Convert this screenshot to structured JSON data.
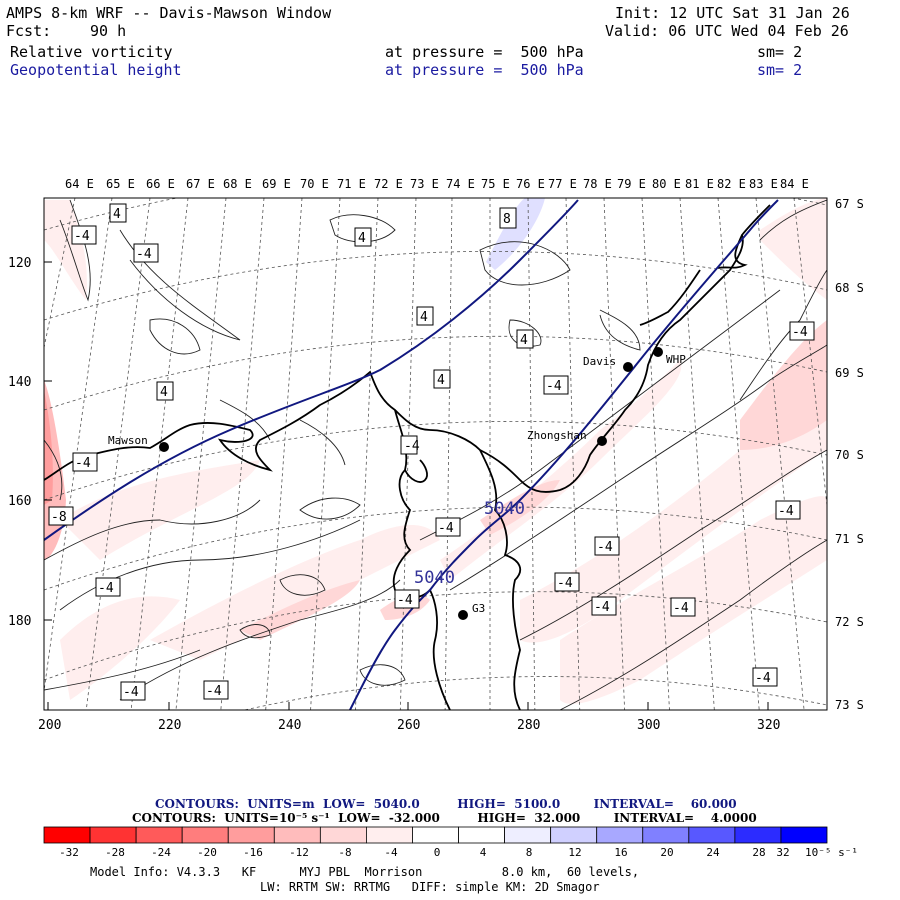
{
  "header": {
    "title": "AMPS 8-km WRF -- Davis-Mawson Window",
    "init": "Init: 12 UTC Sat 31 Jan 26",
    "fcst_label": "Fcst:",
    "fcst_value": "90 h",
    "valid": "Valid: 06 UTC Wed 04 Feb 26",
    "field1_name": "Relative vorticity",
    "field1_level": "at pressure =  500 hPa",
    "field1_sm": "sm= 2",
    "field2_name": "Geopotential height",
    "field2_level": "at pressure =  500 hPa",
    "field2_sm": "sm= 2"
  },
  "map": {
    "top_labels": [
      "64 E",
      "65 E",
      "66 E",
      "67 E",
      "68 E",
      "69 E",
      "70 E",
      "71 E",
      "72 E",
      "73 E",
      "74 E",
      "75 E",
      "76 E",
      "77 E",
      "78 E",
      "79 E",
      "80 E",
      "81 E",
      "82 E",
      "83 E",
      "84 E"
    ],
    "right_labels": [
      "67 S",
      "68 S",
      "69 S",
      "70 S",
      "71 S",
      "72 S",
      "73 S"
    ],
    "left_ticks": [
      "120",
      "140",
      "160",
      "180"
    ],
    "bottom_ticks": [
      "200",
      "220",
      "240",
      "260",
      "280",
      "300",
      "320"
    ],
    "stations": [
      "Mawson",
      "Davis",
      "WHP",
      "Zhongshan",
      "G3"
    ],
    "height_labels": [
      "5040",
      "5040"
    ],
    "vort_boxes": [
      "4",
      "-4",
      "-4",
      "-4",
      "8",
      "-4",
      "4",
      "4",
      "4",
      "-4",
      "4",
      "4",
      "-4",
      "-4",
      "-8",
      "-4",
      "-4",
      "-4",
      "-4",
      "-4",
      "-4",
      "-4",
      "-4",
      "-4",
      "-4",
      "-4",
      "-4"
    ]
  },
  "legend": {
    "line1": "CONTOURS:  UNITS=m  LOW=  5040.0         HIGH=  5100.0        INTERVAL=    60.000",
    "line2": "CONTOURS:  UNITS=10⁻⁵ s⁻¹  LOW=  -32.000         HIGH=  32.000        INTERVAL=    4.0000",
    "scale_values": [
      "-32",
      "-28",
      "-24",
      "-20",
      "-16",
      "-12",
      "-8",
      "-4",
      "0",
      "4",
      "8",
      "12",
      "16",
      "20",
      "24",
      "28",
      "32"
    ],
    "scale_unit": "10⁻⁵ s⁻¹",
    "colors": [
      "#ff0000",
      "#ff3333",
      "#ff5a5a",
      "#ff7d7d",
      "#ff9d9d",
      "#ffbcbc",
      "#ffd7d7",
      "#ffeeee",
      "#ffffff",
      "#ffffff",
      "#eeeeff",
      "#d0d0ff",
      "#a8a8ff",
      "#8080ff",
      "#5858ff",
      "#2c2cff",
      "#0000ff"
    ]
  },
  "footer": {
    "line1": "Model Info: V4.3.3   KF      MYJ PBL  Morrison           8.0 km,  60 levels,",
    "line2": "LW: RRTM SW: RRTMG   DIFF: simple KM: 2D Smagor"
  }
}
